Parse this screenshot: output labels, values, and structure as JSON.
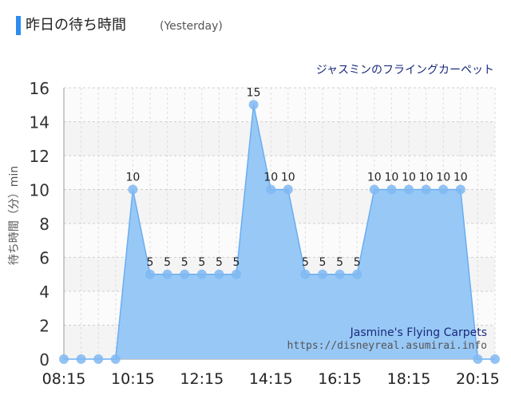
{
  "header": {
    "title": "昨日の待ち時間",
    "subtitle": "(Yesterday)"
  },
  "chart_data": {
    "type": "area",
    "title": "ジャスミンのフライングカーペット",
    "ylabel": "待ち時間（分）min",
    "xlabel": "",
    "ylim": [
      0,
      16
    ],
    "yticks": [
      0,
      2,
      4,
      6,
      8,
      10,
      12,
      14,
      16
    ],
    "xticks": [
      "08:15",
      "10:15",
      "12:15",
      "14:15",
      "16:15",
      "18:15",
      "20:15"
    ],
    "grid": true,
    "watermark": [
      "Jasmine's Flying Carpets",
      "https://disneyreal.asumirai.info"
    ],
    "x": [
      "08:15",
      "08:45",
      "09:15",
      "09:45",
      "10:15",
      "10:45",
      "11:15",
      "11:45",
      "12:15",
      "12:45",
      "13:15",
      "13:45",
      "14:15",
      "14:45",
      "15:15",
      "15:45",
      "16:15",
      "16:45",
      "17:15",
      "17:45",
      "18:15",
      "18:45",
      "19:15",
      "19:45",
      "20:15",
      "20:45"
    ],
    "series": [
      {
        "values": [
          0,
          0,
          0,
          0,
          10,
          5,
          5,
          5,
          5,
          5,
          5,
          15,
          10,
          10,
          5,
          5,
          5,
          5,
          10,
          10,
          10,
          10,
          10,
          10,
          0,
          0
        ],
        "data_labels": [
          "",
          "",
          "",
          "",
          "10",
          "5",
          "5",
          "5",
          "5",
          "5",
          "5",
          "15",
          "10",
          "10",
          "5",
          "5",
          "5",
          "5",
          "10",
          "10",
          "10",
          "10",
          "10",
          "10",
          "",
          ""
        ]
      }
    ],
    "colors": {
      "fill": "#92c5f5",
      "line": "#6aaef0",
      "point": "#7fb8f2",
      "title": "#1a2a7a"
    }
  }
}
